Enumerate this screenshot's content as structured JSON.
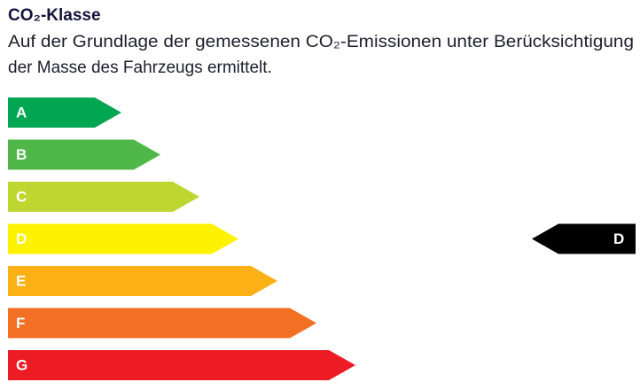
{
  "header": {
    "title": "CO₂-Klasse",
    "description": [
      "Auf der Grundlage der gemessenen CO₂-Emissionen unter Berücksichtigung",
      "der Masse des Fahrzeugs ermittelt."
    ]
  },
  "classes": [
    {
      "label": "A",
      "color": "#00a651"
    },
    {
      "label": "B",
      "color": "#50b848"
    },
    {
      "label": "C",
      "color": "#bed630"
    },
    {
      "label": "D",
      "color": "#fff200"
    },
    {
      "label": "E",
      "color": "#fbb116"
    },
    {
      "label": "F",
      "color": "#f36f24"
    },
    {
      "label": "G",
      "color": "#ed1c24"
    }
  ],
  "indicator": {
    "label": "D",
    "color": "#000000"
  }
}
